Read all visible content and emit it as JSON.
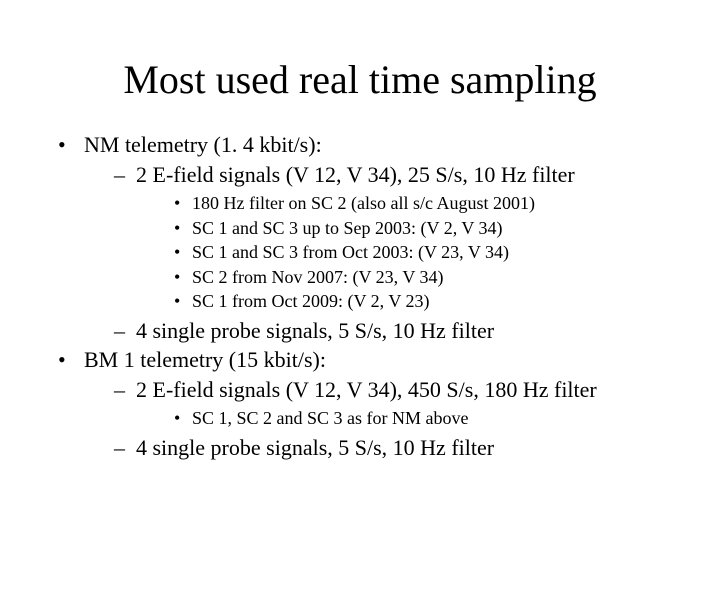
{
  "title": "Most used real time sampling",
  "items": [
    {
      "text": "NM telemetry (1. 4 kbit/s):",
      "children": [
        {
          "text": "2 E-field signals (V 12, V 34), 25 S/s, 10 Hz filter",
          "children": [
            {
              "text": "180 Hz filter on SC 2 (also all s/c August 2001)"
            },
            {
              "text": "SC 1 and SC 3 up to Sep 2003: (V 2, V 34)"
            },
            {
              "text": "SC 1 and SC 3 from Oct 2003: (V 23, V 34)"
            },
            {
              "text": "SC 2 from Nov 2007: (V 23, V 34)"
            },
            {
              "text": "SC 1 from Oct 2009: (V 2, V 23)"
            }
          ]
        },
        {
          "text": "4 single probe signals, 5 S/s, 10 Hz filter"
        }
      ]
    },
    {
      "text": "BM 1 telemetry (15 kbit/s):",
      "children": [
        {
          "text": "2 E-field signals (V 12, V 34), 450 S/s, 180 Hz filter",
          "children": [
            {
              "text": "SC 1, SC 2 and SC 3 as for NM above"
            }
          ]
        },
        {
          "text": "4 single probe signals, 5 S/s, 10 Hz filter"
        }
      ]
    }
  ]
}
